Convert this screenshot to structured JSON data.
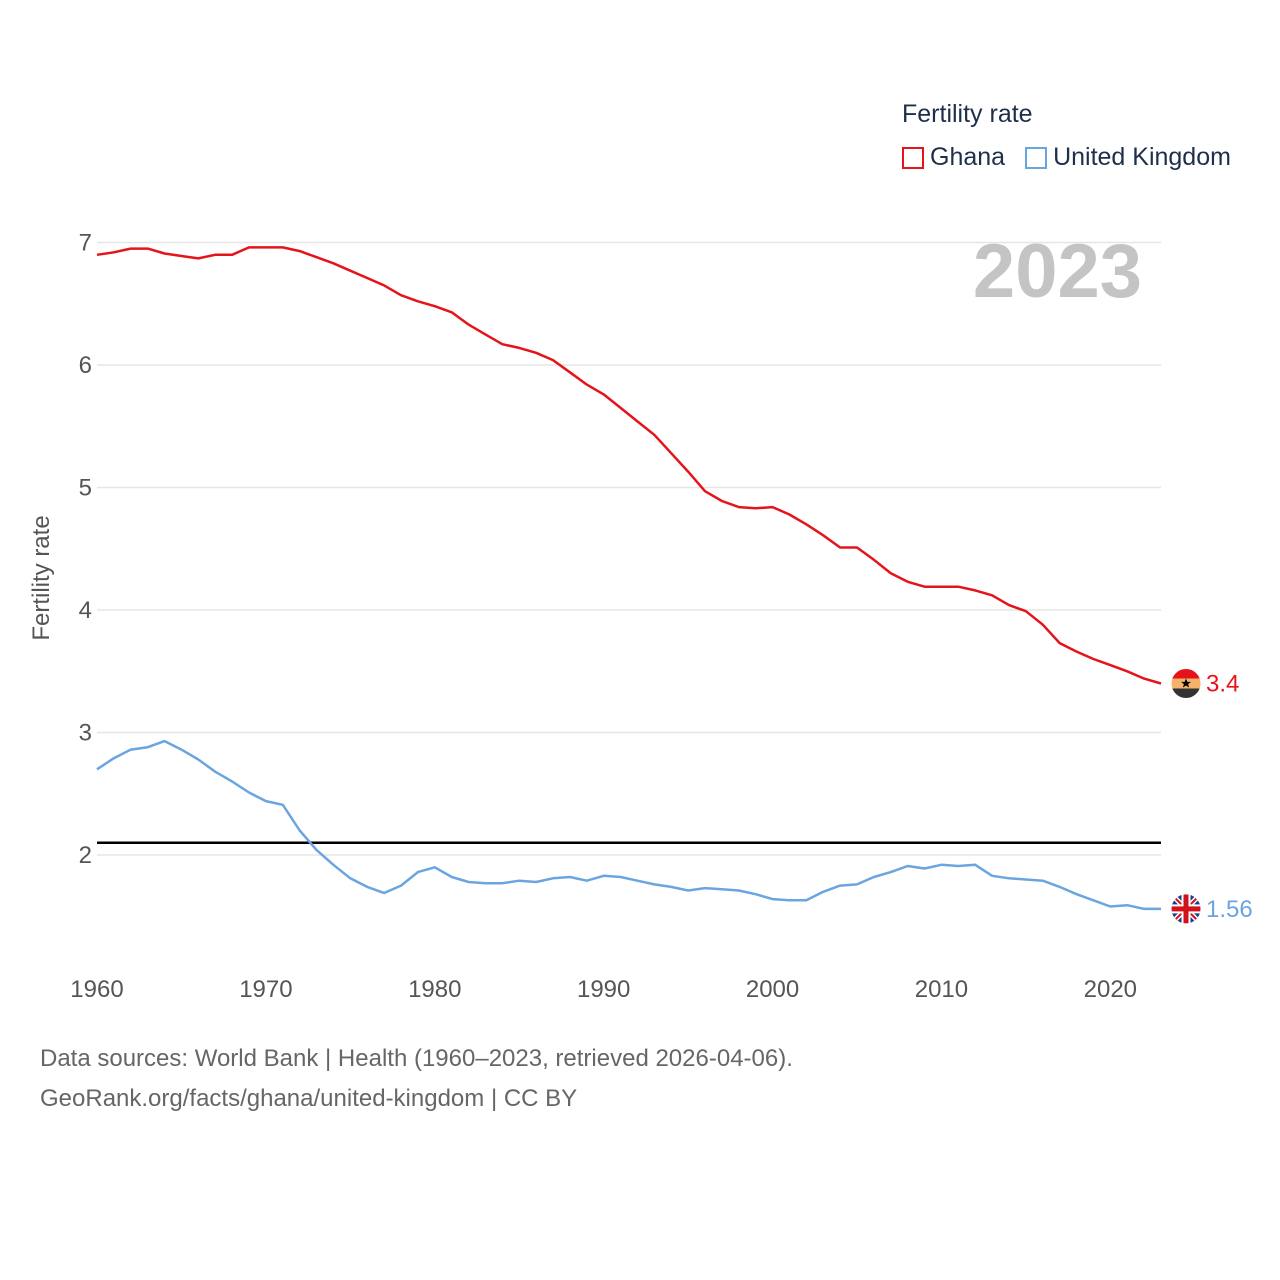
{
  "chart_data": {
    "type": "line",
    "legend_title": "Fertility rate",
    "year_label": "2023",
    "ylabel": "Fertility rate",
    "xlabel": "",
    "xlim": [
      1960,
      2023
    ],
    "ylim": [
      1.1,
      7.1
    ],
    "yticks": [
      "7",
      "6",
      "5",
      "4",
      "3",
      "2"
    ],
    "xticks": [
      "1960",
      "1970",
      "1980",
      "1990",
      "2000",
      "2010",
      "2020"
    ],
    "reference_line": 2.1,
    "x": [
      1960,
      1961,
      1962,
      1963,
      1964,
      1965,
      1966,
      1967,
      1968,
      1969,
      1970,
      1971,
      1972,
      1973,
      1974,
      1975,
      1976,
      1977,
      1978,
      1979,
      1980,
      1981,
      1982,
      1983,
      1984,
      1985,
      1986,
      1987,
      1988,
      1989,
      1990,
      1991,
      1992,
      1993,
      1994,
      1995,
      1996,
      1997,
      1998,
      1999,
      2000,
      2001,
      2002,
      2003,
      2004,
      2005,
      2006,
      2007,
      2008,
      2009,
      2010,
      2011,
      2012,
      2013,
      2014,
      2015,
      2016,
      2017,
      2018,
      2019,
      2020,
      2021,
      2022,
      2023
    ],
    "series": [
      {
        "name": "Ghana",
        "color": "#e5141b",
        "end_label": "3.4",
        "values": [
          6.9,
          6.92,
          6.95,
          6.95,
          6.91,
          6.89,
          6.87,
          6.9,
          6.9,
          6.96,
          6.96,
          6.96,
          6.93,
          6.88,
          6.83,
          6.77,
          6.71,
          6.65,
          6.57,
          6.52,
          6.48,
          6.43,
          6.33,
          6.25,
          6.17,
          6.14,
          6.1,
          6.04,
          5.94,
          5.84,
          5.76,
          5.65,
          5.54,
          5.43,
          5.28,
          5.13,
          4.97,
          4.89,
          4.84,
          4.83,
          4.84,
          4.78,
          4.7,
          4.61,
          4.51,
          4.51,
          4.41,
          4.3,
          4.23,
          4.19,
          4.19,
          4.19,
          4.16,
          4.12,
          4.04,
          3.99,
          3.88,
          3.73,
          3.66,
          3.6,
          3.55,
          3.5,
          3.44,
          3.4
        ]
      },
      {
        "name": "United Kingdom",
        "color": "#6ba5e0",
        "end_label": "1.56",
        "values": [
          2.7,
          2.79,
          2.86,
          2.88,
          2.93,
          2.86,
          2.78,
          2.68,
          2.6,
          2.51,
          2.44,
          2.41,
          2.2,
          2.04,
          1.92,
          1.81,
          1.74,
          1.69,
          1.75,
          1.86,
          1.9,
          1.82,
          1.78,
          1.77,
          1.77,
          1.79,
          1.78,
          1.81,
          1.82,
          1.79,
          1.83,
          1.82,
          1.79,
          1.76,
          1.74,
          1.71,
          1.73,
          1.72,
          1.71,
          1.68,
          1.64,
          1.63,
          1.63,
          1.7,
          1.75,
          1.76,
          1.82,
          1.86,
          1.91,
          1.89,
          1.92,
          1.91,
          1.92,
          1.83,
          1.81,
          1.8,
          1.79,
          1.74,
          1.68,
          1.63,
          1.58,
          1.59,
          1.56,
          1.56
        ]
      }
    ]
  },
  "footer": {
    "line1": "Data sources: World Bank | Health (1960–2023, retrieved 2026-04-06).",
    "line2": "GeoRank.org/facts/ghana/united-kingdom | CC BY"
  },
  "icons": {
    "Ghana": "ghana-flag-icon",
    "United Kingdom": "uk-flag-icon"
  }
}
